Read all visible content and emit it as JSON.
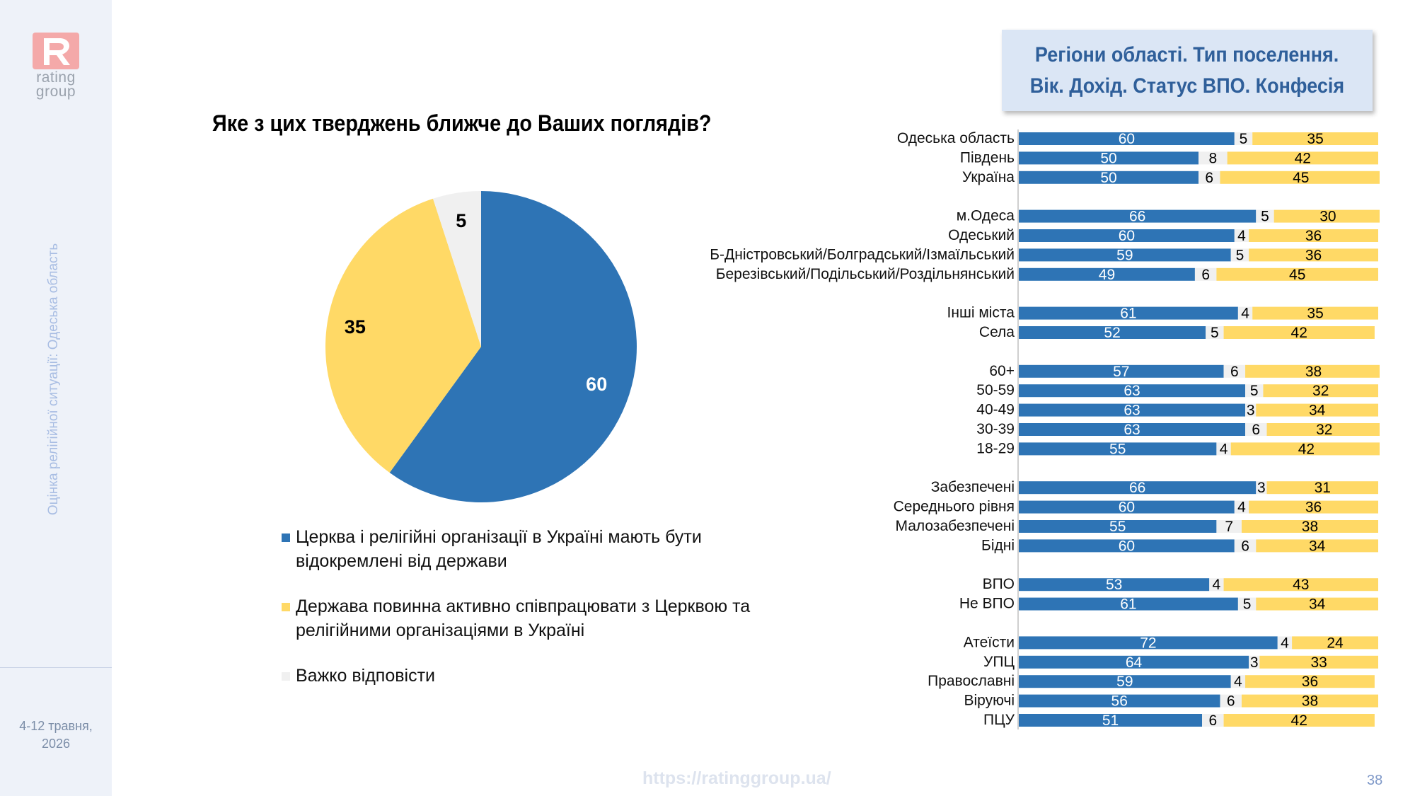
{
  "sidebar": {
    "logo_line1": "rating",
    "logo_line2": "group",
    "vertical_caption": "Оцінка релігійної ситуації: Одеська область",
    "date_line1": "4-12 травня,",
    "date_line2": "2026"
  },
  "header": {
    "question": "Яке з цих тверджень ближче до Ваших поглядів?"
  },
  "regions_box": {
    "line1": "Регіони області. Тип поселення.",
    "line2": "Вік. Дохід. Статус ВПО. Конфесія"
  },
  "legend": [
    {
      "label": "Церква і релігійні організації в Україні мають бути відокремлені від держави"
    },
    {
      "label": "Держава повинна активно співпрацювати з Церквою та релігійними організаціями в Україні"
    },
    {
      "label": "Важко відповісти"
    }
  ],
  "colors": {
    "blue": "#2e74b5",
    "yellow": "#ffd966",
    "gray": "#f0f0f0"
  },
  "footer": {
    "url": "https://ratinggroup.ua/",
    "page_number": "38"
  },
  "chart_data": [
    {
      "type": "pie",
      "categories": [
        "Церква і релігійні організації в Україні мають бути відокремлені від держави",
        "Держава повинна активно співпрацювати з Церквою та релігійними організаціями в Україні",
        "Важко відповісти"
      ],
      "values": [
        60,
        35,
        5
      ],
      "title": "Яке з цих тверджень ближче до Ваших поглядів?"
    },
    {
      "type": "bar",
      "orientation": "horizontal",
      "stacked": true,
      "title": "Регіони області. Тип поселення. Вік. Дохід. Статус ВПО. Конфесія",
      "groups": [
        {
          "categories": [
            "Одеська область",
            "Південь",
            "Україна"
          ]
        },
        {
          "categories": [
            "м.Одеса",
            "Одеський",
            "Б-Дністровський/Болградський/Ізмаїльський",
            "Березівський/Подільський/Роздільнянський"
          ]
        },
        {
          "categories": [
            "Інші міста",
            "Села"
          ]
        },
        {
          "categories": [
            "60+",
            "50-59",
            "40-49",
            "30-39",
            "18-29"
          ]
        },
        {
          "categories": [
            "Забезпечені",
            "Середнього рівня",
            "Малозабезпечені",
            "Бідні"
          ]
        },
        {
          "categories": [
            "ВПО",
            "Не ВПО"
          ]
        },
        {
          "categories": [
            "Атеїсти",
            "УПЦ",
            "Православні",
            "Віруючі",
            "ПЦУ"
          ]
        }
      ],
      "categories": [
        "Одеська область",
        "Південь",
        "Україна",
        "м.Одеса",
        "Одеський",
        "Б-Дністровський/Болградський/Ізмаїльський",
        "Березівський/Подільський/Роздільнянський",
        "Інші міста",
        "Села",
        "60+",
        "50-59",
        "40-49",
        "30-39",
        "18-29",
        "Забезпечені",
        "Середнього рівня",
        "Малозабезпечені",
        "Бідні",
        "ВПО",
        "Не ВПО",
        "Атеїсти",
        "УПЦ",
        "Православні",
        "Віруючі",
        "ПЦУ"
      ],
      "series": [
        {
          "values": [
            60,
            50,
            50,
            66,
            60,
            59,
            49,
            61,
            52,
            57,
            63,
            63,
            63,
            55,
            66,
            60,
            55,
            60,
            53,
            61,
            72,
            64,
            59,
            56,
            51
          ]
        },
        {
          "values": [
            5,
            8,
            6,
            5,
            4,
            5,
            6,
            4,
            5,
            6,
            5,
            3,
            6,
            4,
            3,
            4,
            7,
            6,
            4,
            5,
            4,
            3,
            4,
            6,
            6
          ]
        },
        {
          "values": [
            35,
            42,
            45,
            30,
            36,
            36,
            45,
            35,
            42,
            38,
            32,
            34,
            32,
            42,
            31,
            36,
            38,
            34,
            43,
            34,
            24,
            33,
            36,
            38,
            42
          ]
        }
      ],
      "xlim": [
        0,
        100
      ]
    }
  ]
}
